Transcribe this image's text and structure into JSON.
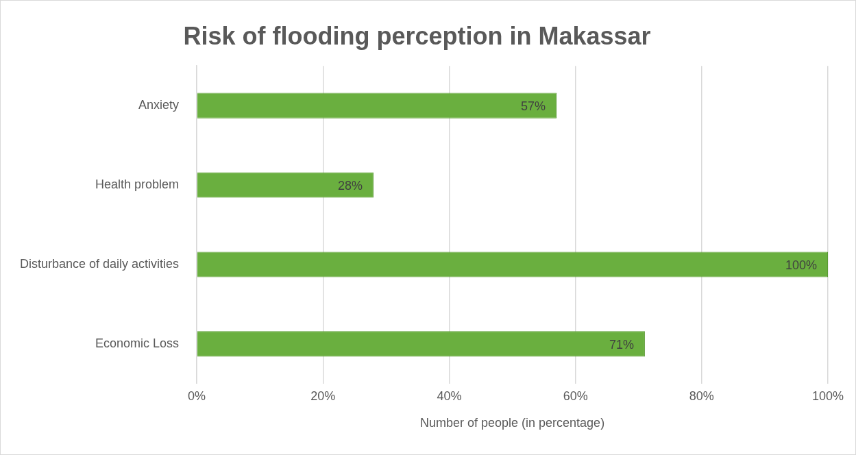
{
  "chart_data": {
    "type": "bar",
    "orientation": "horizontal",
    "title": "Risk of flooding perception in Makassar",
    "xlabel": "Number of people (in percentage)",
    "categories": [
      "Anxiety",
      "Health problem",
      "Disturbance of daily activities",
      "Economic Loss"
    ],
    "values": [
      57,
      28,
      100,
      71
    ],
    "color": "#6aaf3f",
    "value_labels": [
      "57%",
      "28%",
      "100%",
      "71%"
    ],
    "xlim": [
      0,
      100
    ],
    "xticks": [
      {
        "value": 0,
        "label": "0%"
      },
      {
        "value": 20,
        "label": "20%"
      },
      {
        "value": 40,
        "label": "40%"
      },
      {
        "value": 60,
        "label": "60%"
      },
      {
        "value": 80,
        "label": "80%"
      },
      {
        "value": 100,
        "label": "100%"
      }
    ],
    "grid": "x",
    "legend": false
  }
}
